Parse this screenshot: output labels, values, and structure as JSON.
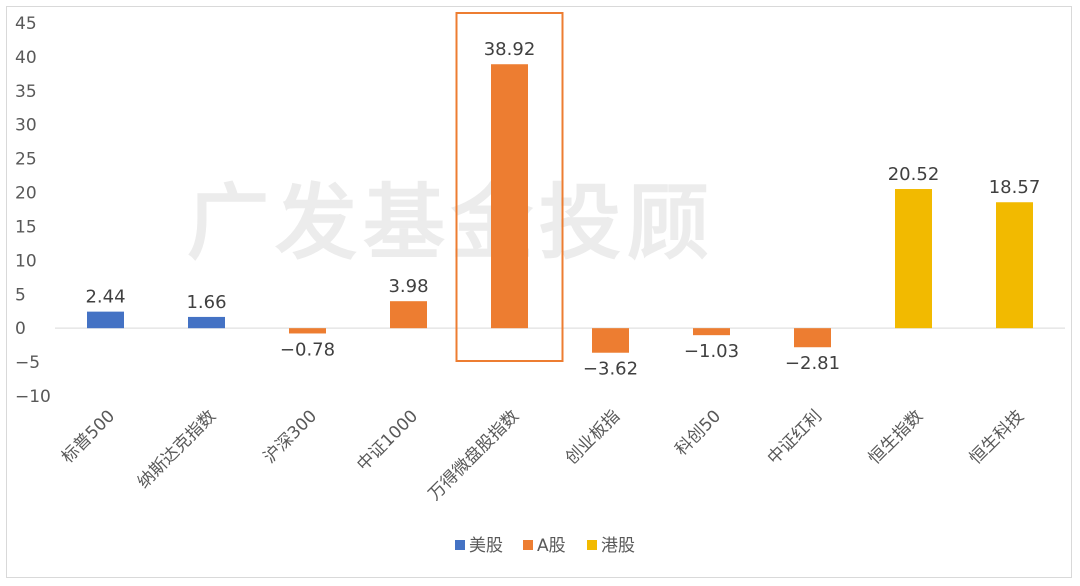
{
  "chart_data": {
    "type": "bar",
    "categories": [
      "标普500",
      "纳斯达克指数",
      "沪深300",
      "中证1000",
      "万得微盘股指数",
      "创业板指",
      "科创50",
      "中证红利",
      "恒生指数",
      "恒生科技"
    ],
    "values": [
      2.44,
      1.66,
      -0.78,
      3.98,
      38.92,
      -3.62,
      -1.03,
      -2.81,
      20.52,
      18.57
    ],
    "value_labels": [
      "2.44",
      "1.66",
      "−0.78",
      "3.98",
      "38.92",
      "−3.62",
      "−1.03",
      "−2.81",
      "20.52",
      "18.57"
    ],
    "groups": [
      "美股",
      "美股",
      "A股",
      "A股",
      "A股",
      "A股",
      "A股",
      "A股",
      "港股",
      "港股"
    ],
    "legend": [
      {
        "name": "美股",
        "color": "#4472C4"
      },
      {
        "name": "A股",
        "color": "#ED7D31"
      },
      {
        "name": "港股",
        "color": "#F2BA00"
      }
    ],
    "legend_position": "bottom",
    "ylim": [
      -10,
      45
    ],
    "yticks": [
      45,
      40,
      35,
      30,
      25,
      20,
      15,
      10,
      5,
      0,
      -5,
      -10
    ],
    "ytick_labels": [
      "45",
      "40",
      "35",
      "30",
      "25",
      "20",
      "15",
      "10",
      "5",
      "0",
      "−5",
      "−10"
    ],
    "highlight_category": "万得微盘股指数",
    "highlight_color": "#ED7D31",
    "watermark": "广发基金投顾",
    "grid": false,
    "title": "",
    "xlabel": "",
    "ylabel": ""
  }
}
